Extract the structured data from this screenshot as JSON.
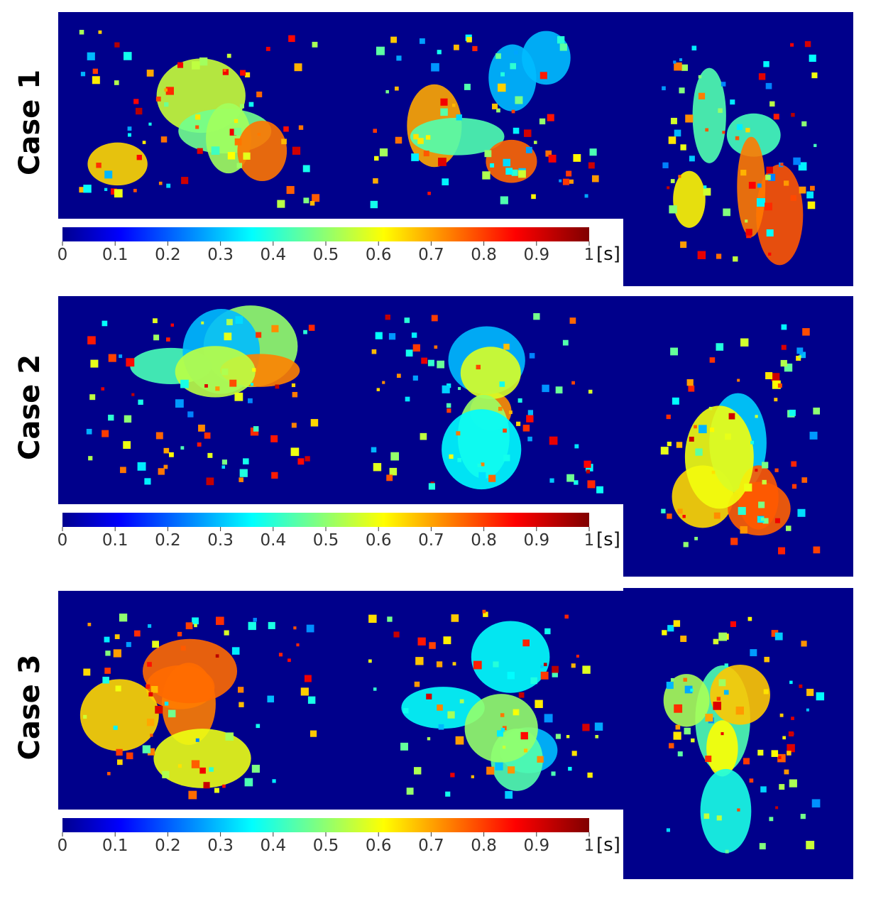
{
  "cases": [
    {
      "label": "Case 1"
    },
    {
      "label": "Case 2"
    },
    {
      "label": "Case 3"
    }
  ],
  "colorbar": {
    "ticks": [
      0,
      0.1,
      0.2,
      0.3,
      0.4,
      0.5,
      0.6,
      0.7,
      0.8,
      0.9,
      1
    ],
    "unit": "[s]"
  }
}
